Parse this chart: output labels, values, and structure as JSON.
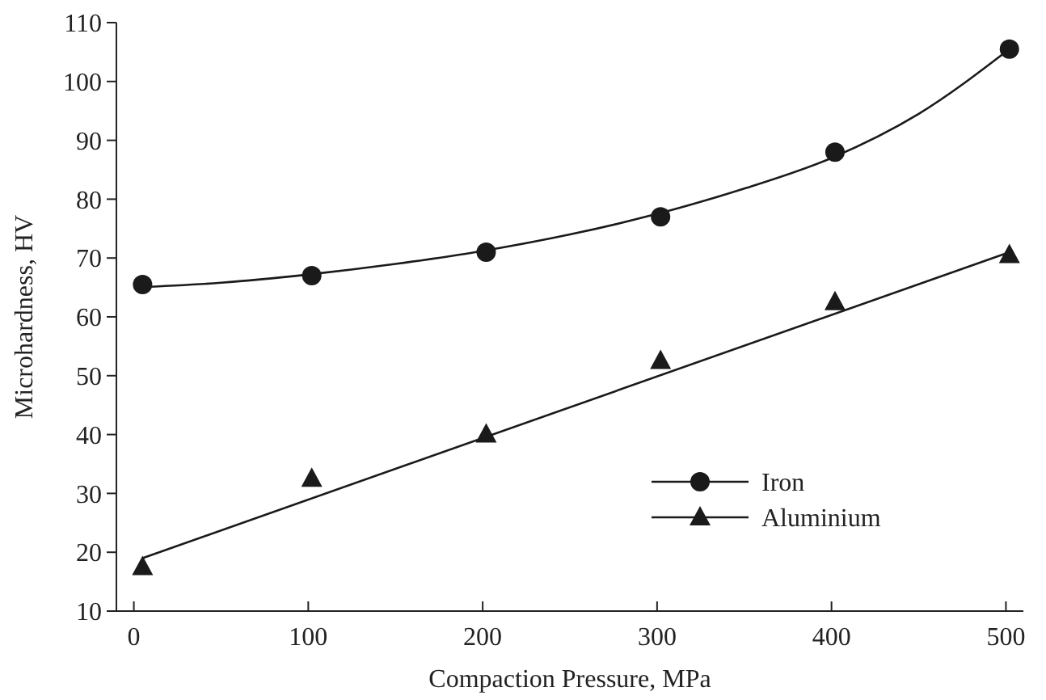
{
  "chart_data": {
    "type": "scatter",
    "xlabel": "Compaction Pressure, MPa",
    "ylabel": "Microhardness, HV",
    "xlim": [
      -10,
      510
    ],
    "ylim": [
      10,
      110
    ],
    "xticks": [
      0,
      100,
      200,
      300,
      400,
      500
    ],
    "yticks": [
      10,
      20,
      30,
      40,
      50,
      60,
      70,
      80,
      90,
      100,
      110
    ],
    "legend": "bottom right",
    "series": [
      {
        "name": "Iron",
        "marker": "circle",
        "color": "#1a1a1a",
        "x": [
          5,
          102,
          202,
          302,
          402,
          502
        ],
        "values": [
          65.5,
          67,
          71,
          77,
          88,
          105.5
        ]
      },
      {
        "name": "Aluminium",
        "marker": "triangle",
        "color": "#1a1a1a",
        "x": [
          5,
          102,
          202,
          302,
          402,
          502
        ],
        "values": [
          17.5,
          32.5,
          40,
          52.5,
          62.5,
          70.5
        ]
      },
      {
        "type": "line",
        "marker": "none",
        "color": "#1a1a1a",
        "x": [
          0,
          50,
          100,
          150,
          200,
          250,
          300,
          350,
          400,
          450,
          502
        ],
        "values": [
          65,
          65.8,
          67.2,
          69,
          71.2,
          74,
          77.5,
          81.8,
          87,
          94.5,
          105.5
        ]
      },
      {
        "type": "line",
        "marker": "none",
        "color": "#1a1a1a",
        "x": [
          5,
          502
        ],
        "values": [
          19,
          71
        ]
      }
    ]
  }
}
